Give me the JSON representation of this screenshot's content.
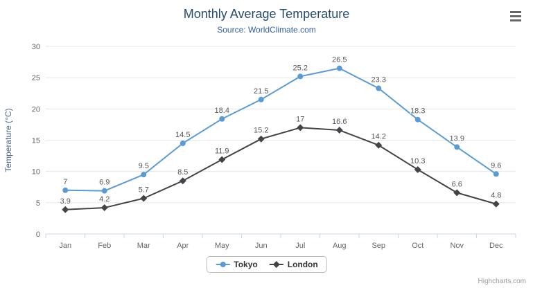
{
  "chart": {
    "credits_label": "Highcharts.com",
    "icons": {
      "menu": "hamburger-menu-icon"
    }
  },
  "chart_data": {
    "type": "line",
    "title": "Monthly Average Temperature",
    "subtitle": "Source: WorldClimate.com",
    "categories": [
      "Jan",
      "Feb",
      "Mar",
      "Apr",
      "May",
      "Jun",
      "Jul",
      "Aug",
      "Sep",
      "Oct",
      "Nov",
      "Dec"
    ],
    "series": [
      {
        "name": "Tokyo",
        "color": "#5b9bd5",
        "marker": "circle",
        "values": [
          7,
          6.9,
          9.5,
          14.5,
          18.4,
          21.5,
          25.2,
          26.5,
          23.3,
          18.3,
          13.9,
          9.6
        ]
      },
      {
        "name": "London",
        "color": "#434348",
        "marker": "diamond",
        "values": [
          3.9,
          4.2,
          5.7,
          8.5,
          11.9,
          15.2,
          17,
          16.6,
          14.2,
          10.3,
          6.6,
          4.8
        ]
      }
    ],
    "xlabel": "",
    "ylabel": "Temperature (°C)",
    "ylim": [
      0,
      30
    ],
    "yticks": [
      0,
      5,
      10,
      15,
      20,
      25,
      30
    ],
    "grid": true,
    "data_labels": true,
    "legend_position": "bottom"
  }
}
